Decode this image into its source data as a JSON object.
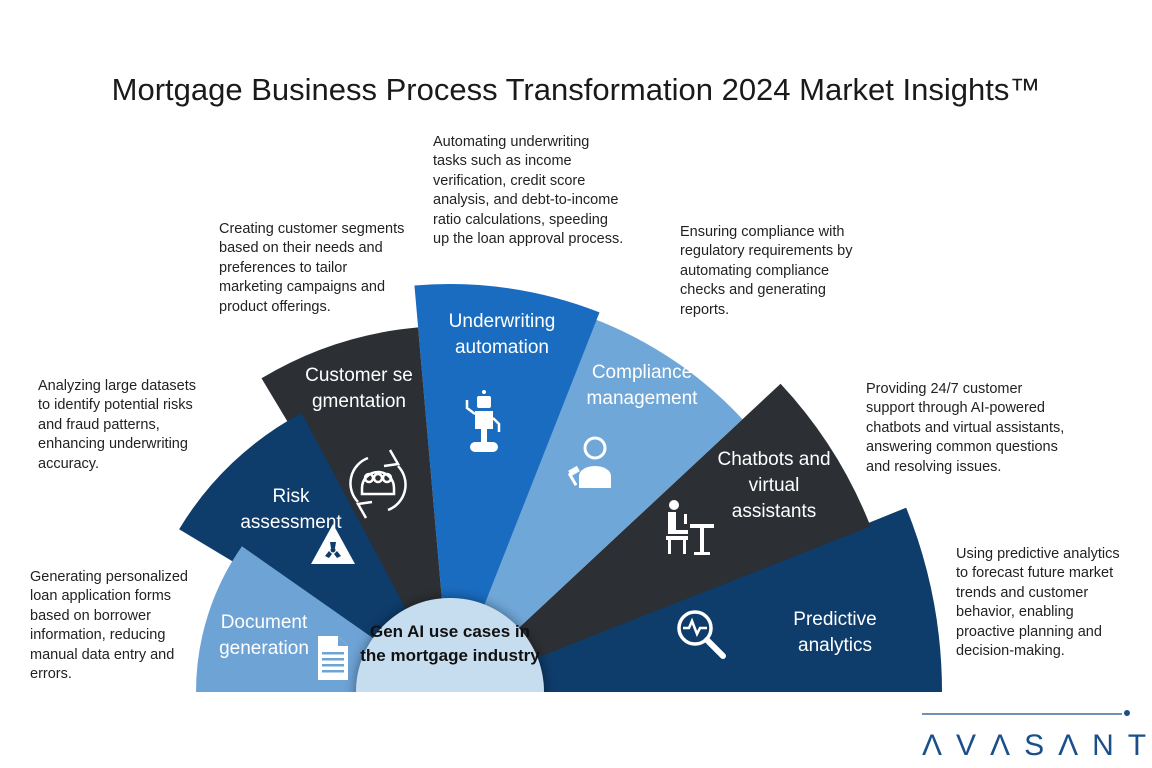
{
  "title": "Mortgage Business Process Transformation 2024 Market Insights™",
  "center": {
    "label": "Gen AI use cases in the mortgage industry",
    "color": "#c6ddf0"
  },
  "segments": [
    {
      "label": "Document generation",
      "icon": "document-icon",
      "color": "#6ea3d6",
      "description": "Generating personalized loan application forms based on borrower information, reducing manual data entry and errors."
    },
    {
      "label": "Risk assessment",
      "icon": "radiation-warning-icon",
      "color": "#0e3c6b",
      "description": "Analyzing large datasets to identify potential risks and fraud patterns, enhancing underwriting accuracy."
    },
    {
      "label": "Customer segmentation",
      "icon": "group-cycle-icon",
      "color": "#2c2f34",
      "description": "Creating customer segments based on their needs and preferences to tailor marketing campaigns and product offerings."
    },
    {
      "label": "Underwriting automation",
      "icon": "robot-icon",
      "color": "#1a6cc0",
      "description": "Automating underwriting tasks such as income verification, credit score analysis, and debt-to-income ratio calculations, speeding up the loan approval process."
    },
    {
      "label": "Compliance management",
      "icon": "judge-icon",
      "color": "#70a7d9",
      "description": "Ensuring compliance with regulatory requirements by automating compliance checks and generating reports."
    },
    {
      "label": "Chatbots and virtual assistants",
      "icon": "person-at-desk-icon",
      "color": "#2c2f34",
      "description": "Providing 24/7 customer support through AI-powered chatbots and virtual assistants, answering common questions and resolving issues."
    },
    {
      "label": "Predictive analytics",
      "icon": "magnifier-pulse-icon",
      "color": "#0e3c6b",
      "description": "Using predictive analytics to forecast future market trends and customer behavior, enabling proactive planning and decision-making."
    }
  ],
  "logo": {
    "text": "AVASANT",
    "color": "#1a4f8a"
  }
}
